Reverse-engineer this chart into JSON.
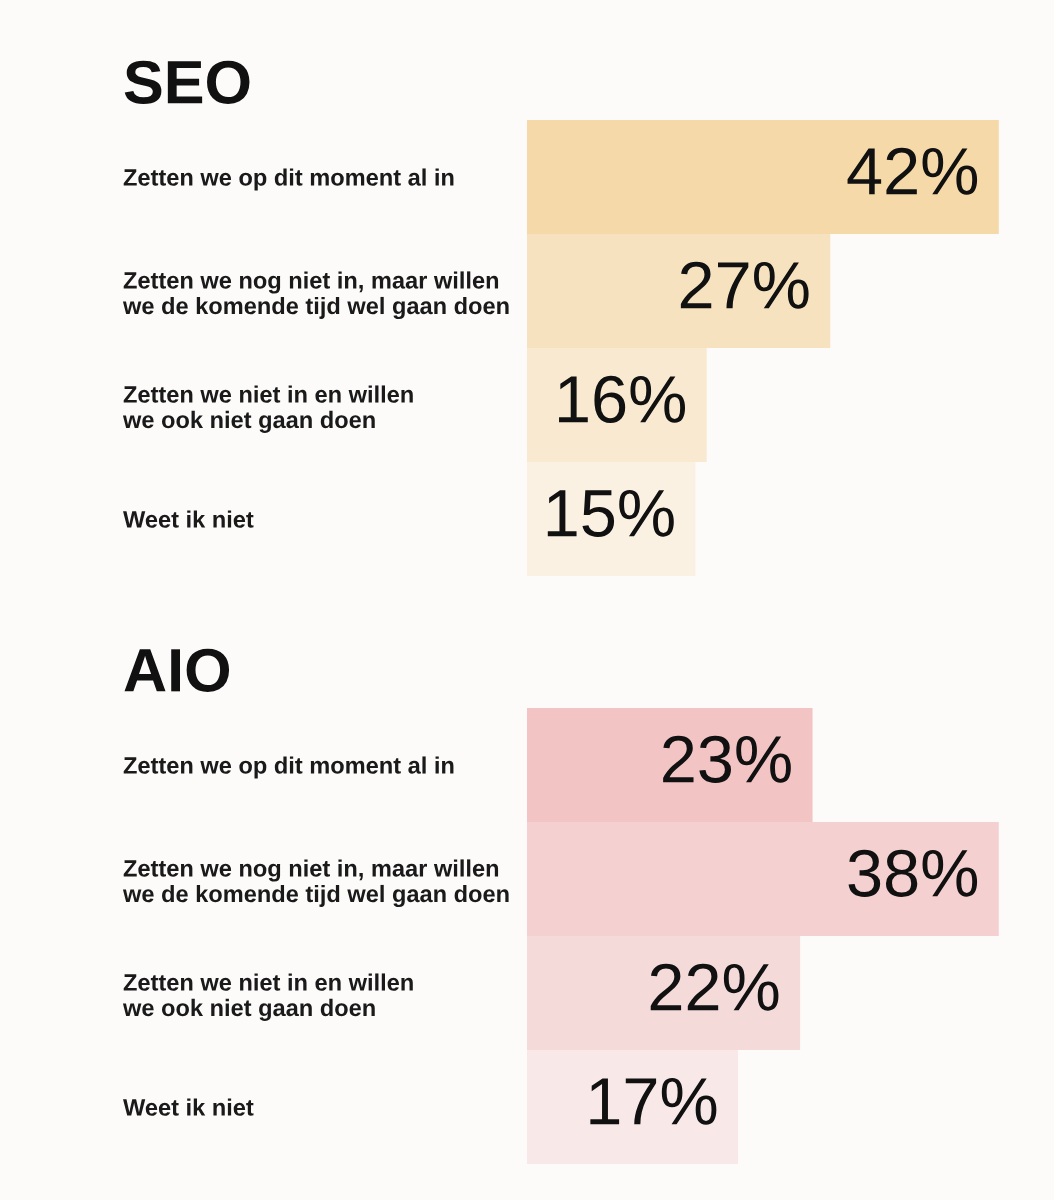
{
  "chart_data": [
    {
      "type": "bar",
      "orientation": "horizontal",
      "title": "SEO",
      "categories": [
        "Zetten we op dit moment al in",
        "Zetten we nog niet in, maar willen\nwe de komende tijd wel gaan doen",
        "Zetten we niet in en willen\nwe ook niet gaan doen",
        "Weet ik niet"
      ],
      "values": [
        42,
        27,
        16,
        15
      ],
      "value_labels": [
        "42%",
        "27%",
        "16%",
        "15%"
      ],
      "colors": [
        "#f5d9a8",
        "#f7e2bf",
        "#f9e9d0",
        "#faf1e3"
      ],
      "tick_labels": "y",
      "grid": false,
      "legend": false
    },
    {
      "type": "bar",
      "orientation": "horizontal",
      "title": "AIO",
      "categories": [
        "Zetten we op dit moment al in",
        "Zetten we nog niet in, maar willen\nwe de komende tijd wel gaan doen",
        "Zetten we niet in en willen\nwe ook niet gaan doen",
        "Weet ik niet"
      ],
      "values": [
        23,
        38,
        22,
        17
      ],
      "value_labels": [
        "23%",
        "38%",
        "22%",
        "17%"
      ],
      "colors": [
        "#f2c4c4",
        "#f4d0d0",
        "#f5dada",
        "#f8e8e8"
      ],
      "tick_labels": "y",
      "grid": false,
      "legend": false
    }
  ]
}
